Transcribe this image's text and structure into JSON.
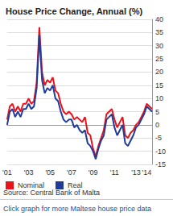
{
  "chart_data": {
    "type": "line",
    "title": "House Price Change, Annual (%)",
    "categories": [
      "'01",
      null,
      null,
      null,
      null,
      null,
      null,
      null,
      "'03",
      null,
      null,
      null,
      null,
      null,
      null,
      null,
      "'05",
      null,
      null,
      null,
      null,
      null,
      null,
      null,
      "'07",
      null,
      null,
      null,
      null,
      null,
      null,
      null,
      "'09",
      null,
      null,
      null,
      null,
      null,
      null,
      null,
      "'11",
      null,
      null,
      null,
      null,
      null,
      null,
      null,
      "'13",
      null,
      null,
      null,
      "'14",
      null,
      null
    ],
    "series": [
      {
        "name": "Nominal",
        "color": "#e8141b",
        "values": [
          2,
          7,
          8,
          5,
          7,
          5,
          8,
          8,
          10,
          8,
          9,
          16,
          37,
          20,
          15,
          17,
          16,
          18,
          13,
          12,
          8,
          5,
          4,
          5,
          4,
          2,
          3,
          2,
          1,
          3,
          -3,
          -4,
          -9,
          -12,
          -8,
          -5,
          -2,
          4,
          5,
          6,
          2,
          -1,
          1,
          3,
          -4,
          -5,
          -3,
          -2,
          0,
          1,
          3,
          5,
          8,
          7,
          6
        ]
      },
      {
        "name": "Real",
        "color": "#1f3c99",
        "values": [
          0,
          5,
          6,
          3,
          5,
          3,
          6,
          6,
          8,
          6,
          7,
          14,
          34,
          17,
          12,
          14,
          13,
          15,
          10,
          9,
          5,
          2,
          1,
          2,
          2,
          -1,
          0,
          -2,
          -3,
          -2,
          -7,
          -8,
          -10,
          -13,
          -9,
          -6,
          -4,
          2,
          3,
          4,
          -1,
          -4,
          -2,
          0,
          -7,
          -8,
          -6,
          -4,
          -1,
          0,
          2,
          4,
          7,
          6,
          5
        ]
      }
    ],
    "ylim": [
      -15,
      40
    ],
    "yticks": [
      -15,
      -10,
      -5,
      0,
      5,
      10,
      15,
      20,
      25,
      30,
      35,
      40
    ],
    "grid": true,
    "legend": "bottom-left",
    "annotations": [
      "Source: Central Bank of Malta",
      "Click graph for more Maltese house price data"
    ]
  }
}
